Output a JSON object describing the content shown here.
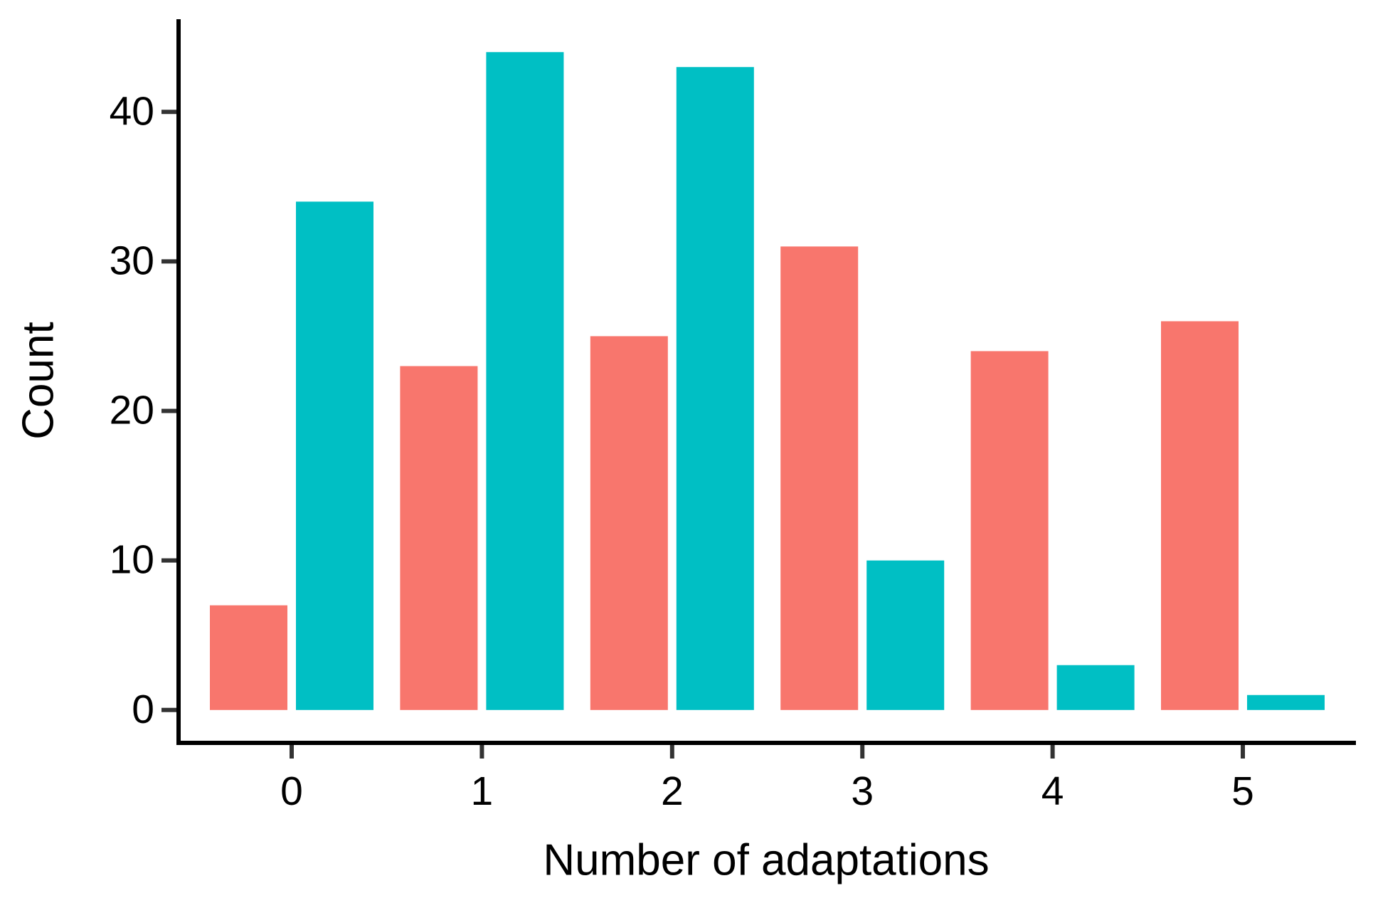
{
  "chart_data": {
    "type": "bar",
    "x_label": "Number of adaptations",
    "y_label": "Count",
    "categories": [
      "0",
      "1",
      "2",
      "3",
      "4",
      "5"
    ],
    "series": [
      {
        "color": "#f8766d",
        "values": [
          7,
          23,
          25,
          31,
          24,
          26
        ]
      },
      {
        "color": "#00bfc4",
        "values": [
          34,
          44,
          43,
          10,
          3,
          1
        ]
      }
    ],
    "ylim": [
      -2.2,
      46.2
    ],
    "yticks": [
      0,
      10,
      20,
      30,
      40
    ],
    "grid": false
  }
}
